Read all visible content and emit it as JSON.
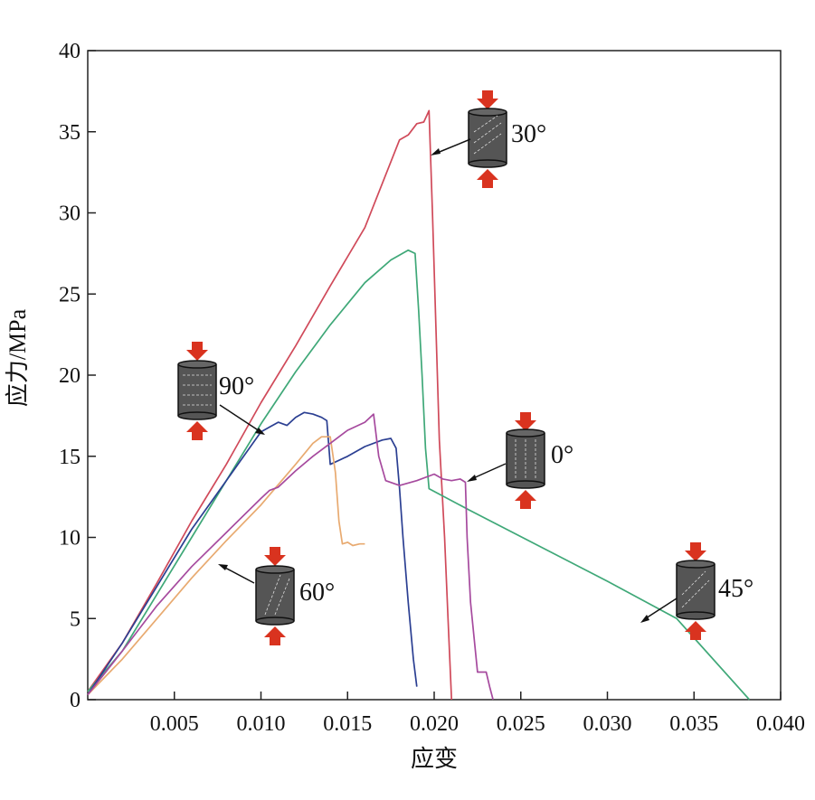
{
  "chart_data": {
    "type": "line",
    "title": "",
    "xlabel": "应变",
    "ylabel": "应力/MPa",
    "xlim": [
      0,
      0.04
    ],
    "ylim": [
      0,
      40
    ],
    "grid": false,
    "legend": "none",
    "x_ticks": [
      "0.005",
      "0.010",
      "0.015",
      "0.020",
      "0.025",
      "0.030",
      "0.035",
      "0.040"
    ],
    "y_ticks": [
      "0",
      "5",
      "10",
      "15",
      "20",
      "25",
      "30",
      "35",
      "40"
    ],
    "series": [
      {
        "color": "#d04a5a",
        "points": [
          [
            0,
            0.5
          ],
          [
            0.002,
            3.5
          ],
          [
            0.004,
            7.2
          ],
          [
            0.006,
            11
          ],
          [
            0.008,
            14.5
          ],
          [
            0.01,
            18.3
          ],
          [
            0.012,
            21.8
          ],
          [
            0.014,
            25.5
          ],
          [
            0.016,
            29.1
          ],
          [
            0.018,
            34.5
          ],
          [
            0.0185,
            34.8
          ],
          [
            0.019,
            35.5
          ],
          [
            0.0194,
            35.6
          ],
          [
            0.0197,
            36.3
          ],
          [
            0.0199,
            30
          ],
          [
            0.0201,
            23
          ],
          [
            0.0203,
            16
          ],
          [
            0.0206,
            10
          ],
          [
            0.0208,
            5
          ],
          [
            0.021,
            0
          ]
        ]
      },
      {
        "color": "#3fa878",
        "points": [
          [
            0,
            0.5
          ],
          [
            0.002,
            3
          ],
          [
            0.004,
            6.5
          ],
          [
            0.006,
            10
          ],
          [
            0.008,
            13.5
          ],
          [
            0.01,
            17
          ],
          [
            0.012,
            20.2
          ],
          [
            0.014,
            23.1
          ],
          [
            0.016,
            25.7
          ],
          [
            0.0175,
            27.1
          ],
          [
            0.0185,
            27.7
          ],
          [
            0.0189,
            27.5
          ],
          [
            0.0191,
            24
          ],
          [
            0.0193,
            20
          ],
          [
            0.0195,
            15.5
          ],
          [
            0.0197,
            13
          ],
          [
            0.022,
            11.7
          ],
          [
            0.026,
            9.5
          ],
          [
            0.03,
            7.3
          ],
          [
            0.034,
            5
          ],
          [
            0.0382,
            0
          ]
        ]
      },
      {
        "color": "#2b3f92",
        "points": [
          [
            0,
            0.3
          ],
          [
            0.002,
            3.5
          ],
          [
            0.004,
            7
          ],
          [
            0.006,
            10.5
          ],
          [
            0.008,
            13.5
          ],
          [
            0.01,
            16.5
          ],
          [
            0.0105,
            16.8
          ],
          [
            0.011,
            17.1
          ],
          [
            0.0115,
            16.9
          ],
          [
            0.012,
            17.4
          ],
          [
            0.0125,
            17.7
          ],
          [
            0.013,
            17.6
          ],
          [
            0.0135,
            17.4
          ],
          [
            0.0138,
            17.2
          ],
          [
            0.014,
            14.5
          ],
          [
            0.015,
            15
          ],
          [
            0.016,
            15.6
          ],
          [
            0.017,
            16
          ],
          [
            0.0175,
            16.1
          ],
          [
            0.0178,
            15.5
          ],
          [
            0.018,
            13
          ],
          [
            0.0182,
            10
          ],
          [
            0.0185,
            6
          ],
          [
            0.0188,
            2.5
          ],
          [
            0.019,
            0.8
          ]
        ]
      },
      {
        "color": "#e8aa70",
        "points": [
          [
            0,
            0.3
          ],
          [
            0.002,
            2.5
          ],
          [
            0.004,
            5
          ],
          [
            0.006,
            7.5
          ],
          [
            0.008,
            9.8
          ],
          [
            0.01,
            12
          ],
          [
            0.012,
            14.5
          ],
          [
            0.013,
            15.8
          ],
          [
            0.0135,
            16.2
          ],
          [
            0.014,
            16.2
          ],
          [
            0.0143,
            14
          ],
          [
            0.0145,
            11
          ],
          [
            0.0147,
            9.6
          ],
          [
            0.015,
            9.7
          ],
          [
            0.0153,
            9.5
          ],
          [
            0.0157,
            9.6
          ],
          [
            0.016,
            9.6
          ]
        ]
      },
      {
        "color": "#a64a9e",
        "points": [
          [
            0,
            0.3
          ],
          [
            0.002,
            3
          ],
          [
            0.004,
            5.8
          ],
          [
            0.006,
            8.2
          ],
          [
            0.008,
            10.3
          ],
          [
            0.01,
            12.4
          ],
          [
            0.0105,
            12.9
          ],
          [
            0.011,
            13.1
          ],
          [
            0.012,
            14.1
          ],
          [
            0.013,
            15
          ],
          [
            0.014,
            15.8
          ],
          [
            0.015,
            16.6
          ],
          [
            0.016,
            17.1
          ],
          [
            0.0165,
            17.6
          ],
          [
            0.0168,
            15
          ],
          [
            0.0172,
            13.5
          ],
          [
            0.018,
            13.2
          ],
          [
            0.019,
            13.5
          ],
          [
            0.02,
            13.9
          ],
          [
            0.0205,
            13.6
          ],
          [
            0.021,
            13.5
          ],
          [
            0.0215,
            13.6
          ],
          [
            0.0218,
            13.4
          ],
          [
            0.0219,
            10
          ],
          [
            0.0221,
            6
          ],
          [
            0.0225,
            1.7
          ],
          [
            0.023,
            1.7
          ],
          [
            0.0232,
            0.8
          ],
          [
            0.0234,
            0
          ]
        ]
      }
    ],
    "annotations": [
      {
        "label": "30°",
        "arrow_target": [
          0.0198,
          33.4
        ]
      },
      {
        "label": "90°",
        "arrow_target": [
          0.0105,
          16.3
        ]
      },
      {
        "label": "0°",
        "arrow_target": [
          0.0219,
          13.2
        ]
      },
      {
        "label": "60°",
        "arrow_target": [
          0.0076,
          8.4
        ]
      },
      {
        "label": "45°",
        "arrow_target": [
          0.032,
          4.3
        ]
      }
    ]
  },
  "colors": {
    "arrow": "#d9331f",
    "cylinder_body": "#555555",
    "cylinder_rim": "#666666",
    "axis": "#222222"
  }
}
